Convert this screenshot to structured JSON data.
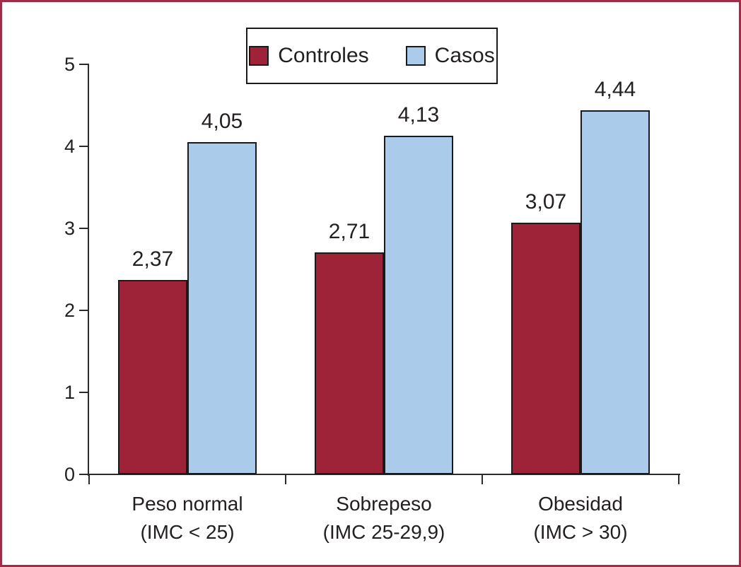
{
  "figure": {
    "border_color": "#A52A48",
    "background_color": "#FFFFFF",
    "axis_color": "#2B2B2B",
    "text_color": "#231F20"
  },
  "legend": {
    "items": [
      {
        "label": "Controles",
        "color": "#9E2339"
      },
      {
        "label": "Casos",
        "color": "#ABCBEA"
      }
    ]
  },
  "chart_data": {
    "type": "bar",
    "title": "",
    "xlabel": "",
    "ylabel": "",
    "categories": [
      "Peso normal\n(IMC < 25)",
      "Sobrepeso\n(IMC 25-29,9)",
      "Obesidad\n(IMC > 30)"
    ],
    "series": [
      {
        "name": "Controles",
        "color": "#9E2339",
        "values": [
          2.37,
          2.71,
          3.07
        ],
        "labels": [
          "2,37",
          "2,71",
          "3,07"
        ]
      },
      {
        "name": "Casos",
        "color": "#ABCBEA",
        "values": [
          4.05,
          4.13,
          4.44
        ],
        "labels": [
          "4,05",
          "4,13",
          "4,44"
        ]
      }
    ],
    "ylim": [
      0,
      5
    ],
    "yticks": [
      0,
      1,
      2,
      3,
      4,
      5
    ],
    "grid": false,
    "legend_position": "top-center",
    "bar_outline_color": "#1A1A1A"
  }
}
